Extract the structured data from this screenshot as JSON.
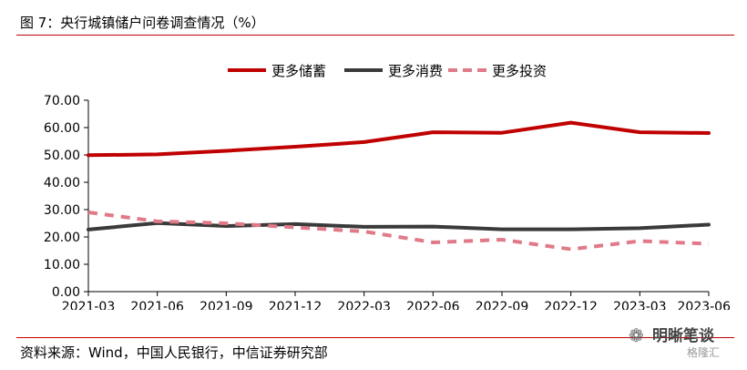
{
  "figure": {
    "title": "图 7：央行城镇储户问卷调查情况（%）",
    "source": "资料来源：Wind，中国人民银行，中信证券研究部"
  },
  "watermark": {
    "name": "明晰笔谈",
    "sub": "格隆汇"
  },
  "colors": {
    "accent": "#c00000"
  },
  "chart_data": {
    "type": "line",
    "title": "",
    "xlabel": "",
    "ylabel": "",
    "categories": [
      "2021-03",
      "2021-06",
      "2021-09",
      "2021-12",
      "2022-03",
      "2022-06",
      "2022-09",
      "2022-12",
      "2023-03",
      "2023-06"
    ],
    "ylim": [
      0,
      70
    ],
    "yticks": [
      "0.00",
      "10.00",
      "20.00",
      "30.00",
      "40.00",
      "50.00",
      "60.00",
      "70.00"
    ],
    "grid": false,
    "legend_position": "top",
    "series": [
      {
        "name": "更多储蓄",
        "values": [
          49.9,
          50.2,
          51.5,
          53.0,
          54.7,
          58.3,
          58.1,
          61.8,
          58.3,
          58.0
        ],
        "color": "#c00000",
        "dash": "solid"
      },
      {
        "name": "更多消费",
        "values": [
          22.7,
          25.1,
          24.0,
          24.7,
          23.7,
          23.8,
          22.8,
          22.8,
          23.2,
          24.5
        ],
        "color": "#3a3a3a",
        "dash": "solid"
      },
      {
        "name": "更多投资",
        "values": [
          29.0,
          25.7,
          25.0,
          23.5,
          22.0,
          18.0,
          19.0,
          15.5,
          18.5,
          17.5
        ],
        "color": "#e07a88",
        "dash": "dashed"
      }
    ]
  }
}
